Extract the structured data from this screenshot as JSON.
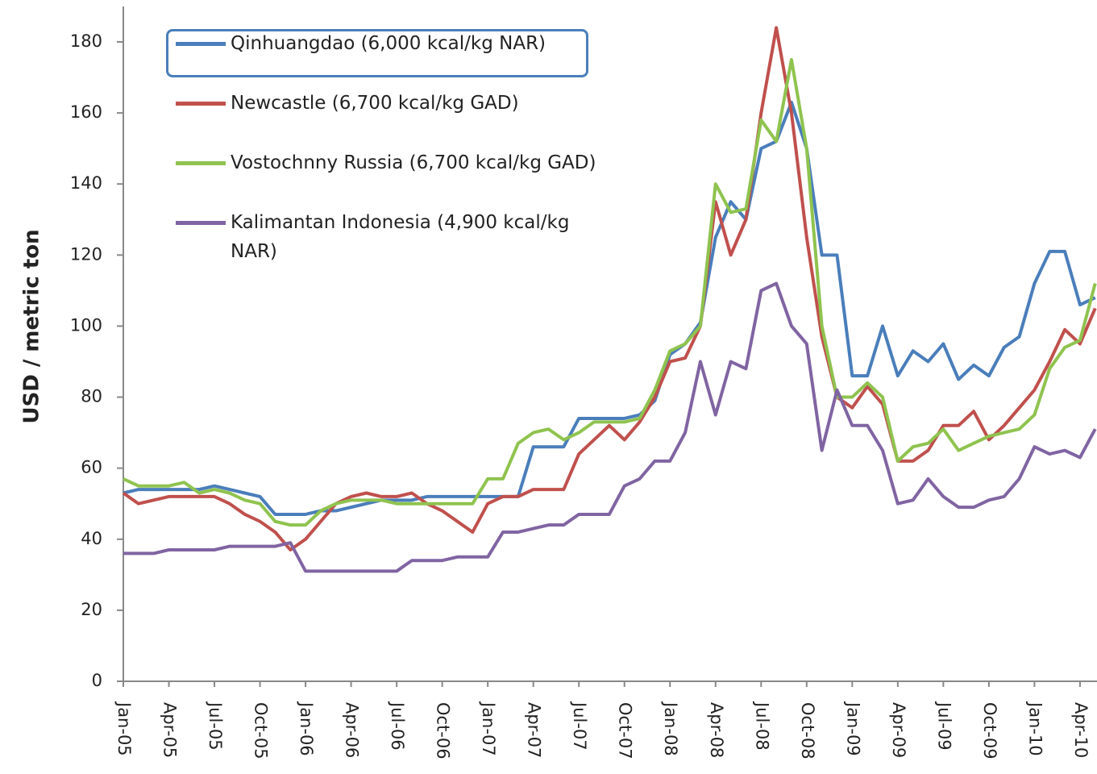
{
  "chart_data": {
    "type": "line",
    "y_label": "USD / metric ton",
    "categories": [
      "Jan-05",
      null,
      null,
      "Apr-05",
      null,
      null,
      "Jul-05",
      null,
      null,
      "Oct-05",
      null,
      null,
      "Jan-06",
      null,
      null,
      "Apr-06",
      null,
      null,
      "Jul-06",
      null,
      null,
      "Oct-06",
      null,
      null,
      "Jan-07",
      null,
      null,
      "Apr-07",
      null,
      null,
      "Jul-07",
      null,
      null,
      "Oct-07",
      null,
      null,
      "Jan-08",
      null,
      null,
      "Apr-08",
      null,
      null,
      "Jul-08",
      null,
      null,
      "Oct-08",
      null,
      null,
      "Jan-09",
      null,
      null,
      "Apr-09",
      null,
      null,
      "Jul-09",
      null,
      null,
      "Oct-09",
      null,
      null,
      "Jan-10",
      null,
      null,
      "Apr-10",
      null
    ],
    "series": [
      {
        "name": "Qinhuangdao (6,000 kcal/kg NAR)",
        "color": "#4a7ebb",
        "values": [
          53,
          54,
          54,
          54,
          54,
          54,
          55,
          54,
          53,
          52,
          47,
          47,
          47,
          48,
          48,
          49,
          50,
          51,
          51,
          51,
          52,
          52,
          52,
          52,
          52,
          52,
          52,
          66,
          66,
          66,
          74,
          74,
          74,
          74,
          75,
          79,
          92,
          95,
          101,
          125,
          135,
          130,
          150,
          152,
          163,
          150,
          120,
          120,
          86,
          86,
          100,
          86,
          93,
          90,
          95,
          85,
          89,
          86,
          94,
          97,
          112,
          121,
          121,
          106,
          108
        ]
      },
      {
        "name": "Newcastle (6,700 kcal/kg GAD)",
        "color": "#c0504d",
        "values": [
          53,
          50,
          51,
          52,
          52,
          52,
          52,
          50,
          47,
          45,
          42,
          37,
          40,
          45,
          50,
          52,
          53,
          52,
          52,
          53,
          50,
          48,
          45,
          42,
          50,
          52,
          52,
          54,
          54,
          54,
          64,
          68,
          72,
          68,
          73,
          80,
          90,
          91,
          100,
          135,
          120,
          130,
          160,
          184,
          160,
          125,
          97,
          80,
          77,
          83,
          78,
          62,
          62,
          65,
          72,
          72,
          76,
          68,
          72,
          77,
          82,
          90,
          99,
          95,
          105
        ]
      },
      {
        "name": "Vostochnny Russia (6,700 kcal/kg GAD)",
        "color": "#8fc34f",
        "values": [
          57,
          55,
          55,
          55,
          56,
          53,
          54,
          53,
          51,
          50,
          45,
          44,
          44,
          48,
          50,
          51,
          51,
          51,
          50,
          50,
          50,
          50,
          50,
          50,
          57,
          57,
          67,
          70,
          71,
          68,
          70,
          73,
          73,
          73,
          74,
          82,
          93,
          95,
          100,
          140,
          132,
          133,
          158,
          152,
          175,
          150,
          100,
          80,
          80,
          84,
          80,
          62,
          66,
          67,
          71,
          65,
          67,
          69,
          70,
          71,
          75,
          88,
          94,
          96,
          112
        ]
      },
      {
        "name": "Kalimantan Indonesia (4,900 kcal/kg NAR)",
        "color": "#8064a2",
        "values": [
          36,
          36,
          36,
          37,
          37,
          37,
          37,
          38,
          38,
          38,
          38,
          39,
          31,
          31,
          31,
          31,
          31,
          31,
          31,
          34,
          34,
          34,
          35,
          35,
          35,
          42,
          42,
          43,
          44,
          44,
          47,
          47,
          47,
          55,
          57,
          62,
          62,
          70,
          90,
          75,
          90,
          88,
          110,
          112,
          100,
          95,
          65,
          82,
          72,
          72,
          65,
          50,
          51,
          57,
          52,
          49,
          49,
          51,
          52,
          57,
          66,
          64,
          65,
          63,
          71
        ]
      }
    ],
    "ylim": [
      0,
      180
    ],
    "yticks": [
      0,
      20,
      40,
      60,
      80,
      100,
      120,
      140,
      160,
      180
    ],
    "grid": false,
    "legend": "top-left"
  }
}
